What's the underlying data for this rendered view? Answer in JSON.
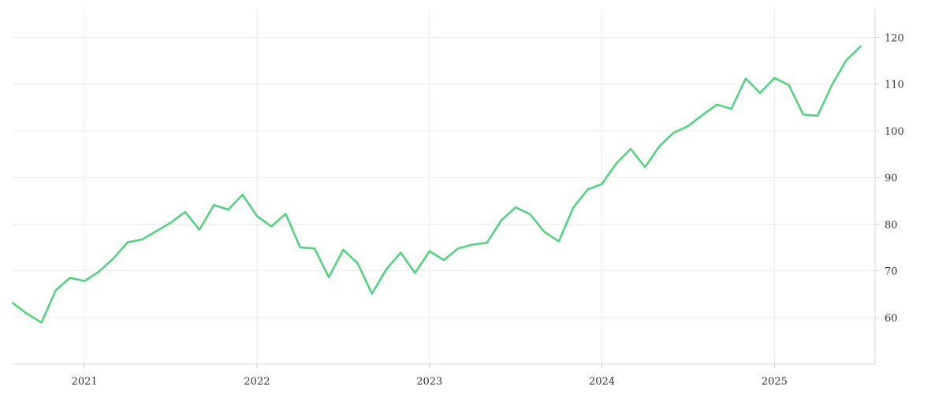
{
  "chart_data": {
    "type": "line",
    "title": "",
    "xlabel": "",
    "ylabel": "",
    "x_ticks": [
      "2021",
      "2022",
      "2023",
      "2024",
      "2025"
    ],
    "y_ticks": [
      60,
      70,
      80,
      90,
      100,
      110,
      120
    ],
    "ylim": [
      50,
      126
    ],
    "xlim": [
      "2020-08",
      "2025-08"
    ],
    "grid": true,
    "y_axis_position": "right",
    "line_color": "#4cd47a",
    "series": [
      {
        "x": [
          "2020-08",
          "2020-09",
          "2020-10",
          "2020-11",
          "2020-12",
          "2021-01",
          "2021-02",
          "2021-03",
          "2021-04",
          "2021-05",
          "2021-06",
          "2021-07",
          "2021-08",
          "2021-09",
          "2021-10",
          "2021-11",
          "2021-12",
          "2022-01",
          "2022-02",
          "2022-03",
          "2022-04",
          "2022-05",
          "2022-06",
          "2022-07",
          "2022-08",
          "2022-09",
          "2022-10",
          "2022-11",
          "2022-12",
          "2023-01",
          "2023-02",
          "2023-03",
          "2023-04",
          "2023-05",
          "2023-06",
          "2023-07",
          "2023-08",
          "2023-09",
          "2023-10",
          "2023-11",
          "2023-12",
          "2024-01",
          "2024-02",
          "2024-03",
          "2024-04",
          "2024-05",
          "2024-06",
          "2024-07",
          "2024-08",
          "2024-09",
          "2024-10",
          "2024-11",
          "2024-12",
          "2025-01",
          "2025-02",
          "2025-03",
          "2025-04",
          "2025-05",
          "2025-06",
          "2025-07"
        ],
        "values": [
          63.1,
          60.8,
          58.9,
          65.8,
          68.5,
          67.8,
          69.8,
          72.6,
          76.1,
          76.7,
          78.5,
          80.3,
          82.6,
          78.8,
          84.1,
          83.1,
          86.3,
          81.7,
          79.5,
          82.2,
          75.0,
          74.8,
          68.6,
          74.5,
          71.6,
          65.1,
          70.3,
          73.9,
          69.5,
          74.2,
          72.3,
          74.8,
          75.6,
          76.0,
          80.8,
          83.6,
          82.1,
          78.3,
          76.3,
          83.5,
          87.4,
          88.6,
          93.0,
          96.1,
          92.2,
          96.7,
          99.6,
          101.0,
          103.4,
          105.6,
          104.7,
          111.2,
          108.1,
          111.3,
          109.8,
          103.5,
          103.2,
          109.8,
          115.1,
          118.1
        ]
      }
    ]
  }
}
